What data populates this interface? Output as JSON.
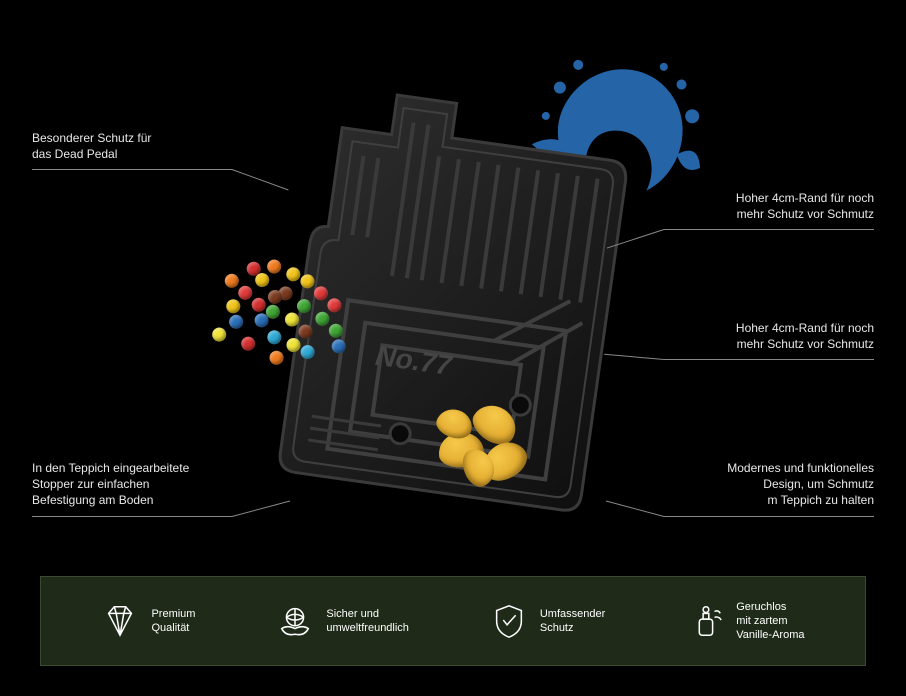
{
  "background_color": "#000000",
  "callouts": {
    "c1": {
      "line1": "Besonderer Schutz für",
      "line2": "das Dead Pedal"
    },
    "c2": {
      "line1": "In den Teppich eingearbeitete",
      "line2": "Stopper zur einfachen",
      "line3": "Befestigung am Boden"
    },
    "c3": {
      "line1": "Hoher 4cm-Rand für noch",
      "line2": "mehr Schutz vor Schmutz"
    },
    "c4": {
      "line1": "Hoher 4cm-Rand für noch",
      "line2": "mehr Schutz vor Schmutz"
    },
    "c5": {
      "line1": "Modernes und funktionelles",
      "line2": "Design, um Schmutz",
      "line3": "m Teppich zu halten"
    }
  },
  "product": {
    "mat_color": "#1a1a1a",
    "mat_highlight": "#2e2e2e",
    "emboss_text": "No.77",
    "splash_color": "#2a6fb8",
    "chip_color": "#e6a82e"
  },
  "candy_colors": [
    "#e03a3a",
    "#f0c419",
    "#3fa535",
    "#2a6fb8",
    "#f07b1f",
    "#7a3a1f",
    "#efe338",
    "#d42f2f",
    "#2fa8d4",
    "#3fa535",
    "#f0c419",
    "#e03a3a",
    "#7a3a1f",
    "#f07b1f",
    "#2a6fb8",
    "#efe338",
    "#3fa535",
    "#d42f2f",
    "#f0c419",
    "#2fa8d4",
    "#e03a3a",
    "#f07b1f",
    "#3fa535",
    "#7a3a1f",
    "#efe338",
    "#2a6fb8",
    "#d42f2f",
    "#f0c419"
  ],
  "features_bar": {
    "background": "#1f2a18",
    "border": "#3a4a30",
    "items": [
      {
        "icon": "diamond",
        "line1": "Premium",
        "line2": "Qualität"
      },
      {
        "icon": "globe-hands",
        "line1": "Sicher und",
        "line2": "umweltfreundlich"
      },
      {
        "icon": "shield-check",
        "line1": "Umfassender",
        "line2": "Schutz"
      },
      {
        "icon": "perfume",
        "line1": "Geruchlos",
        "line2": "mit zartem",
        "line3": "Vanille-Aroma"
      }
    ]
  },
  "text_color": "#e8e8e8",
  "rule_color": "#888888"
}
